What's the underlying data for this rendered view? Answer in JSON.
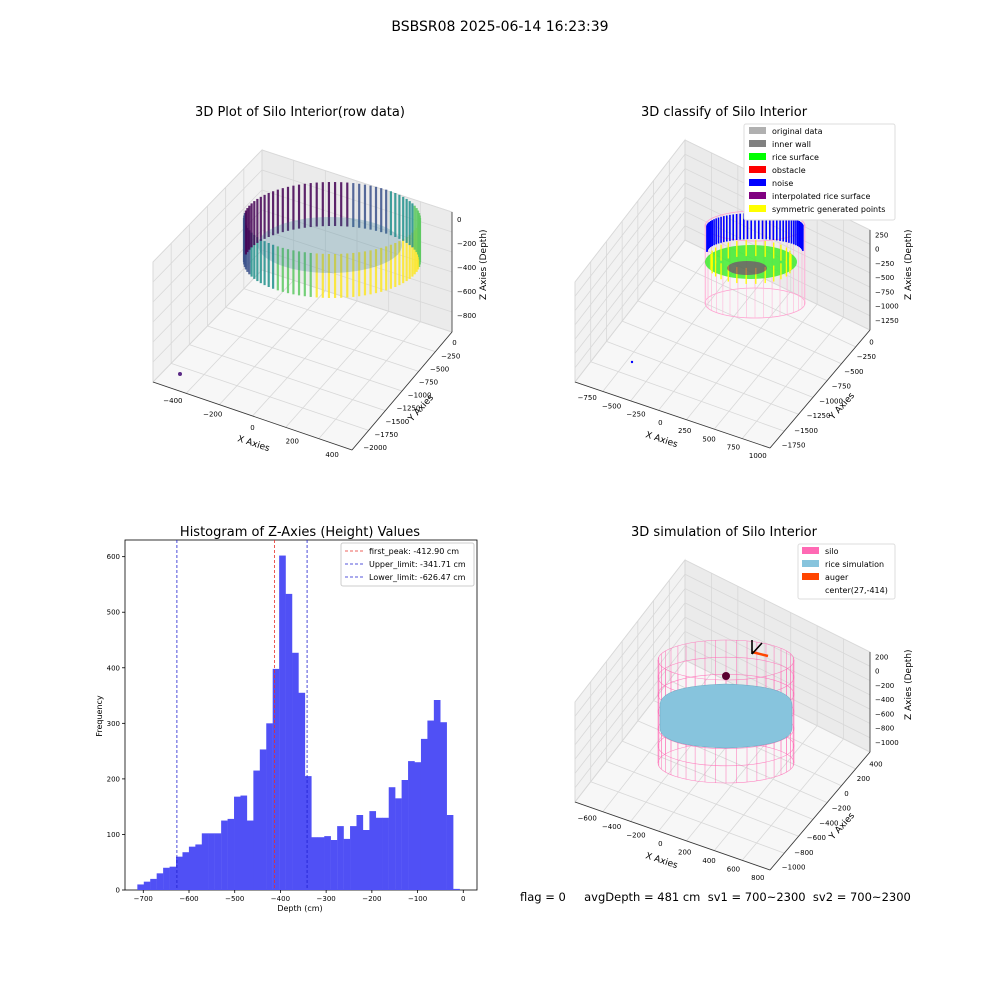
{
  "suptitle": "BSBSR08 2025-06-14 16:23:39",
  "footer": "flag = 0     avgDepth = 481 cm  sv1 = 700~2300  sv2 = 700~2300",
  "colors": {
    "hist_bar": "#5050f5",
    "peak_line": "#e8302a",
    "limit_line": "#1f1fd0",
    "pane": "#f2f2f2",
    "grid": "#d8d8d8",
    "silo": "#ff69b4",
    "rice_sim": "#87c4dd",
    "auger": "#ff4500"
  },
  "panels": {
    "raw": {
      "title": "3D Plot of Silo Interior(row data)",
      "xlabel": "X Axies",
      "ylabel": "Y Axies",
      "zlabel": "Z Axies (Depth)",
      "xticks": [
        "−400",
        "−200",
        "0",
        "200",
        "400"
      ],
      "yticks": [
        "−2000",
        "−1750",
        "−1500",
        "−1250",
        "−1000",
        "−750",
        "−500",
        "−250",
        "0"
      ],
      "zticks": [
        "0",
        "−200",
        "−400",
        "−600",
        "−800"
      ],
      "colormap_icon": "viridis-point-cloud"
    },
    "classify": {
      "title": "3D classify of Silo Interior",
      "xlabel": "X Axies",
      "ylabel": "Y Axies",
      "zlabel": "Z Axies (Depth)",
      "xticks": [
        "−750",
        "−500",
        "−250",
        "0",
        "250",
        "500",
        "750",
        "1000"
      ],
      "yticks": [
        "−1750",
        "−1500",
        "−1250",
        "−1000",
        "−750",
        "−500",
        "−250",
        "0"
      ],
      "zticks": [
        "250",
        "0",
        "−250",
        "−500",
        "−750",
        "−1000",
        "−1250"
      ],
      "legend": [
        {
          "label": "original data",
          "color": "#b0b0b0"
        },
        {
          "label": "inner wall",
          "color": "#808080"
        },
        {
          "label": "rice surface",
          "color": "#00ff00"
        },
        {
          "label": "obstacle",
          "color": "#ff0000"
        },
        {
          "label": "noise",
          "color": "#0000ff"
        },
        {
          "label": "interpolated rice surface",
          "color": "#800080"
        },
        {
          "label": "symmetric generated points",
          "color": "#ffff00"
        }
      ]
    },
    "sim": {
      "title": "3D simulation of Silo Interior",
      "xlabel": "X Axies",
      "ylabel": "Y Axies",
      "zlabel": "Z Axies (Depth)",
      "xticks": [
        "−600",
        "−400",
        "−200",
        "0",
        "200",
        "400",
        "600",
        "800"
      ],
      "yticks": [
        "−1000",
        "−800",
        "−600",
        "−400",
        "−200",
        "0",
        "200",
        "400"
      ],
      "zticks": [
        "200",
        "0",
        "−200",
        "−400",
        "−600",
        "−800",
        "−1000"
      ],
      "legend": [
        {
          "label": "silo",
          "color": "#ff69b4"
        },
        {
          "label": "rice simulation",
          "color": "#87c4dd"
        },
        {
          "label": "auger",
          "color": "#ff4500"
        },
        {
          "label": "center(27,-414)",
          "color": ""
        }
      ]
    }
  },
  "chart_data": {
    "type": "bar",
    "title": "Histogram of Z-Axies (Height) Values",
    "xlabel": "Depth (cm)",
    "ylabel": "Frequency",
    "xlim": [
      -740,
      30
    ],
    "ylim": [
      0,
      630
    ],
    "xticks": [
      -700,
      -600,
      -500,
      -400,
      -300,
      -200,
      -100,
      0
    ],
    "yticks": [
      0,
      100,
      200,
      300,
      400,
      500,
      600
    ],
    "bin_width": 14.1,
    "bin_start": -713,
    "values": [
      10,
      15,
      20,
      30,
      40,
      42,
      60,
      68,
      78,
      82,
      102,
      102,
      102,
      125,
      128,
      168,
      170,
      125,
      215,
      253,
      300,
      398,
      602,
      533,
      427,
      355,
      205,
      95,
      95,
      97,
      90,
      115,
      92,
      115,
      135,
      108,
      142,
      130,
      130,
      185,
      165,
      198,
      232,
      230,
      272,
      305,
      342,
      302,
      135,
      2
    ],
    "vlines": [
      {
        "label": "first_peak: -412.90 cm",
        "x": -412.9,
        "kind": "peak"
      },
      {
        "label": "Upper_limit: -341.71 cm",
        "x": -341.71,
        "kind": "limit"
      },
      {
        "label": "Lower_limit: -626.47 cm",
        "x": -626.47,
        "kind": "limit"
      }
    ],
    "legend_position": "upper right",
    "grid": false
  }
}
